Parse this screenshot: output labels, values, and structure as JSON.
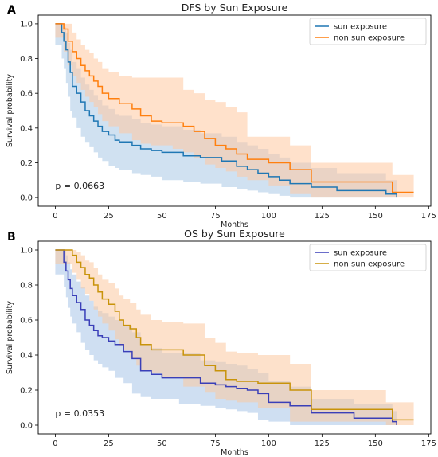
{
  "chart_data": [
    {
      "type": "line",
      "panel_letter": "A",
      "title": "DFS by Sun Exposure",
      "xlabel": "Months",
      "ylabel": "Survival probability",
      "xlim": [
        -8,
        176
      ],
      "ylim": [
        -0.05,
        1.05
      ],
      "xticks": [
        0,
        25,
        50,
        75,
        100,
        125,
        150,
        175
      ],
      "yticks": [
        0.0,
        0.2,
        0.4,
        0.6,
        0.8,
        1.0
      ],
      "annotation": "p = 0.0663",
      "legend_position": "top-right",
      "series": [
        {
          "name": "sun exposure",
          "color": "#1f77b4",
          "band_color": "#aac8e6",
          "step_x": [
            0,
            3,
            4,
            5,
            6,
            7,
            8,
            10,
            12,
            14,
            16,
            18,
            20,
            22,
            25,
            28,
            30,
            36,
            40,
            45,
            50,
            60,
            68,
            78,
            85,
            90,
            95,
            100,
            105,
            110,
            120,
            132,
            155,
            160
          ],
          "step_y": [
            1.0,
            0.95,
            0.9,
            0.85,
            0.78,
            0.72,
            0.64,
            0.6,
            0.55,
            0.5,
            0.47,
            0.44,
            0.41,
            0.38,
            0.36,
            0.33,
            0.32,
            0.3,
            0.28,
            0.27,
            0.26,
            0.24,
            0.23,
            0.21,
            0.18,
            0.16,
            0.14,
            0.12,
            0.1,
            0.08,
            0.06,
            0.04,
            0.02,
            0.0
          ],
          "ci_lower": [
            1.0,
            0.88,
            0.8,
            0.74,
            0.66,
            0.58,
            0.5,
            0.46,
            0.4,
            0.35,
            0.32,
            0.29,
            0.26,
            0.23,
            0.21,
            0.18,
            0.17,
            0.16,
            0.14,
            0.13,
            0.12,
            0.1,
            0.09,
            0.08,
            0.06,
            0.05,
            0.04,
            0.03,
            0.02,
            0.01,
            0.0,
            0.0,
            0.0,
            0.0
          ],
          "ci_upper": [
            1.0,
            1.0,
            0.98,
            0.95,
            0.89,
            0.85,
            0.78,
            0.74,
            0.69,
            0.65,
            0.62,
            0.59,
            0.56,
            0.53,
            0.51,
            0.48,
            0.47,
            0.45,
            0.43,
            0.42,
            0.41,
            0.39,
            0.37,
            0.35,
            0.32,
            0.3,
            0.28,
            0.25,
            0.23,
            0.2,
            0.17,
            0.14,
            0.1,
            0.1
          ]
        },
        {
          "name": "non sun exposure",
          "color": "#ff7f0e",
          "band_color": "#ffc9a0",
          "step_x": [
            0,
            4,
            6,
            8,
            10,
            12,
            14,
            16,
            18,
            20,
            22,
            25,
            30,
            36,
            40,
            45,
            50,
            55,
            60,
            65,
            70,
            75,
            80,
            85,
            90,
            100,
            110,
            120,
            158,
            168
          ],
          "step_y": [
            1.0,
            0.97,
            0.9,
            0.84,
            0.8,
            0.76,
            0.73,
            0.7,
            0.67,
            0.64,
            0.6,
            0.57,
            0.54,
            0.51,
            0.47,
            0.44,
            0.43,
            0.43,
            0.41,
            0.38,
            0.34,
            0.3,
            0.28,
            0.25,
            0.22,
            0.2,
            0.16,
            0.09,
            0.03,
            0.03
          ],
          "ci_lower": [
            1.0,
            0.92,
            0.84,
            0.76,
            0.7,
            0.66,
            0.62,
            0.58,
            0.55,
            0.52,
            0.48,
            0.44,
            0.41,
            0.37,
            0.33,
            0.31,
            0.3,
            0.3,
            0.28,
            0.26,
            0.23,
            0.19,
            0.17,
            0.15,
            0.12,
            0.1,
            0.07,
            0.02,
            0.0,
            0.0
          ],
          "ci_upper": [
            1.0,
            1.0,
            1.0,
            0.95,
            0.91,
            0.88,
            0.85,
            0.83,
            0.8,
            0.78,
            0.74,
            0.72,
            0.7,
            0.69,
            0.69,
            0.69,
            0.69,
            0.69,
            0.62,
            0.6,
            0.56,
            0.55,
            0.52,
            0.49,
            0.35,
            0.35,
            0.3,
            0.2,
            0.13,
            0.13
          ]
        }
      ]
    },
    {
      "type": "line",
      "panel_letter": "B",
      "title": "OS by Sun Exposure",
      "xlabel": "Months",
      "ylabel": "Survival probability",
      "xlim": [
        -8,
        176
      ],
      "ylim": [
        -0.05,
        1.05
      ],
      "xticks": [
        0,
        25,
        50,
        75,
        100,
        125,
        150,
        175
      ],
      "yticks": [
        0.0,
        0.2,
        0.4,
        0.6,
        0.8,
        1.0
      ],
      "annotation": "p = 0.0353",
      "legend_position": "top-right",
      "series": [
        {
          "name": "sun exposure",
          "color": "#3a3fb8",
          "band_color": "#a8c4e8",
          "step_x": [
            0,
            4,
            5,
            6,
            7,
            8,
            10,
            12,
            14,
            16,
            18,
            20,
            22,
            25,
            28,
            32,
            36,
            40,
            45,
            50,
            58,
            68,
            75,
            80,
            85,
            90,
            95,
            100,
            110,
            120,
            140,
            158,
            160
          ],
          "step_y": [
            1.0,
            0.93,
            0.88,
            0.83,
            0.78,
            0.74,
            0.7,
            0.66,
            0.6,
            0.57,
            0.54,
            0.51,
            0.5,
            0.48,
            0.46,
            0.42,
            0.38,
            0.31,
            0.29,
            0.27,
            0.27,
            0.24,
            0.23,
            0.22,
            0.21,
            0.2,
            0.18,
            0.13,
            0.11,
            0.07,
            0.04,
            0.02,
            0.0
          ],
          "ci_lower": [
            1.0,
            0.86,
            0.79,
            0.73,
            0.67,
            0.62,
            0.58,
            0.53,
            0.47,
            0.43,
            0.4,
            0.37,
            0.35,
            0.33,
            0.31,
            0.27,
            0.24,
            0.18,
            0.16,
            0.15,
            0.15,
            0.12,
            0.11,
            0.1,
            0.09,
            0.08,
            0.07,
            0.03,
            0.02,
            0.0,
            0.0,
            0.0,
            0.0
          ],
          "ci_upper": [
            1.0,
            1.0,
            0.97,
            0.93,
            0.89,
            0.86,
            0.82,
            0.79,
            0.74,
            0.71,
            0.68,
            0.65,
            0.64,
            0.62,
            0.6,
            0.57,
            0.53,
            0.46,
            0.44,
            0.41,
            0.41,
            0.37,
            0.36,
            0.35,
            0.34,
            0.32,
            0.3,
            0.25,
            0.22,
            0.15,
            0.12,
            0.08,
            0.08
          ]
        },
        {
          "name": "non sun exposure",
          "color": "#c8930a",
          "band_color": "#fcc9a0",
          "step_x": [
            0,
            8,
            10,
            12,
            14,
            16,
            18,
            20,
            22,
            25,
            28,
            30,
            32,
            35,
            38,
            40,
            45,
            50,
            60,
            70,
            75,
            80,
            85,
            95,
            110,
            120,
            155,
            158,
            168
          ],
          "step_y": [
            1.0,
            0.97,
            0.93,
            0.9,
            0.86,
            0.84,
            0.8,
            0.76,
            0.72,
            0.69,
            0.65,
            0.6,
            0.57,
            0.55,
            0.5,
            0.46,
            0.43,
            0.43,
            0.4,
            0.34,
            0.31,
            0.26,
            0.25,
            0.24,
            0.2,
            0.09,
            0.09,
            0.03,
            0.03
          ],
          "ci_lower": [
            1.0,
            0.92,
            0.87,
            0.83,
            0.78,
            0.75,
            0.71,
            0.66,
            0.62,
            0.58,
            0.54,
            0.49,
            0.45,
            0.43,
            0.38,
            0.34,
            0.31,
            0.3,
            0.27,
            0.22,
            0.19,
            0.15,
            0.14,
            0.13,
            0.1,
            0.02,
            0.02,
            0.0,
            0.0
          ],
          "ci_upper": [
            1.0,
            1.0,
            0.99,
            0.97,
            0.94,
            0.93,
            0.9,
            0.86,
            0.83,
            0.81,
            0.78,
            0.74,
            0.72,
            0.7,
            0.66,
            0.63,
            0.6,
            0.59,
            0.58,
            0.5,
            0.47,
            0.42,
            0.41,
            0.4,
            0.35,
            0.2,
            0.13,
            0.13,
            0.13
          ]
        }
      ]
    }
  ]
}
